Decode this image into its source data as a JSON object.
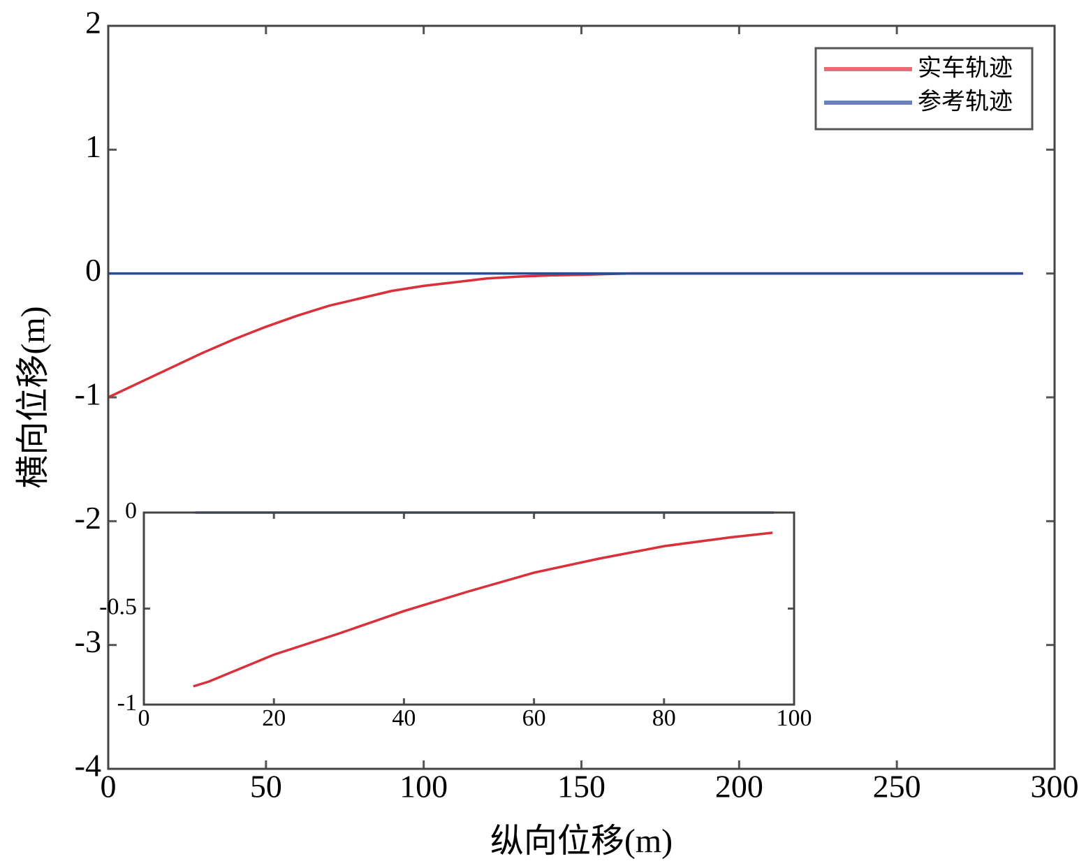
{
  "chart_data": [
    {
      "type": "line",
      "xlabel": "纵向位移(m)",
      "ylabel": "横向位移(m)",
      "xlim": [
        0,
        300
      ],
      "ylim": [
        -4,
        2
      ],
      "xticks": [
        0,
        50,
        100,
        150,
        200,
        250,
        300
      ],
      "yticks": [
        -4,
        -3,
        -2,
        -1,
        0,
        1,
        2
      ],
      "legend": "upper right",
      "series": [
        {
          "name": "实车轨迹",
          "color": "#d9303a",
          "x": [
            0,
            10,
            20,
            30,
            40,
            50,
            60,
            70,
            80,
            90,
            100,
            110,
            120,
            130,
            140,
            150,
            165,
            200,
            250,
            290
          ],
          "values": [
            -1,
            -0.88,
            -0.76,
            -0.64,
            -0.53,
            -0.43,
            -0.34,
            -0.26,
            -0.2,
            -0.14,
            -0.1,
            -0.07,
            -0.04,
            -0.025,
            -0.015,
            -0.01,
            0,
            0,
            0,
            0
          ]
        },
        {
          "name": "参考轨迹",
          "color": "#2a4a9a",
          "x": [
            0,
            290
          ],
          "values": [
            0,
            0
          ]
        }
      ]
    },
    {
      "type": "line",
      "xlim": [
        0,
        100
      ],
      "ylim": [
        -1,
        0
      ],
      "xticks": [
        0,
        20,
        40,
        60,
        80,
        100
      ],
      "yticks": [
        -1,
        -0.5,
        0
      ],
      "series": [
        {
          "color": "#d9303a",
          "x": [
            7.6,
            10,
            20,
            30,
            40,
            50,
            60,
            70,
            80,
            90,
            96.7
          ],
          "values": [
            -0.905,
            -0.88,
            -0.74,
            -0.63,
            -0.513,
            -0.41,
            -0.313,
            -0.24,
            -0.175,
            -0.13,
            -0.105
          ]
        },
        {
          "color": "#2a4a9a",
          "x": [
            7.9,
            96.9
          ],
          "values": [
            0,
            0
          ]
        }
      ]
    }
  ]
}
